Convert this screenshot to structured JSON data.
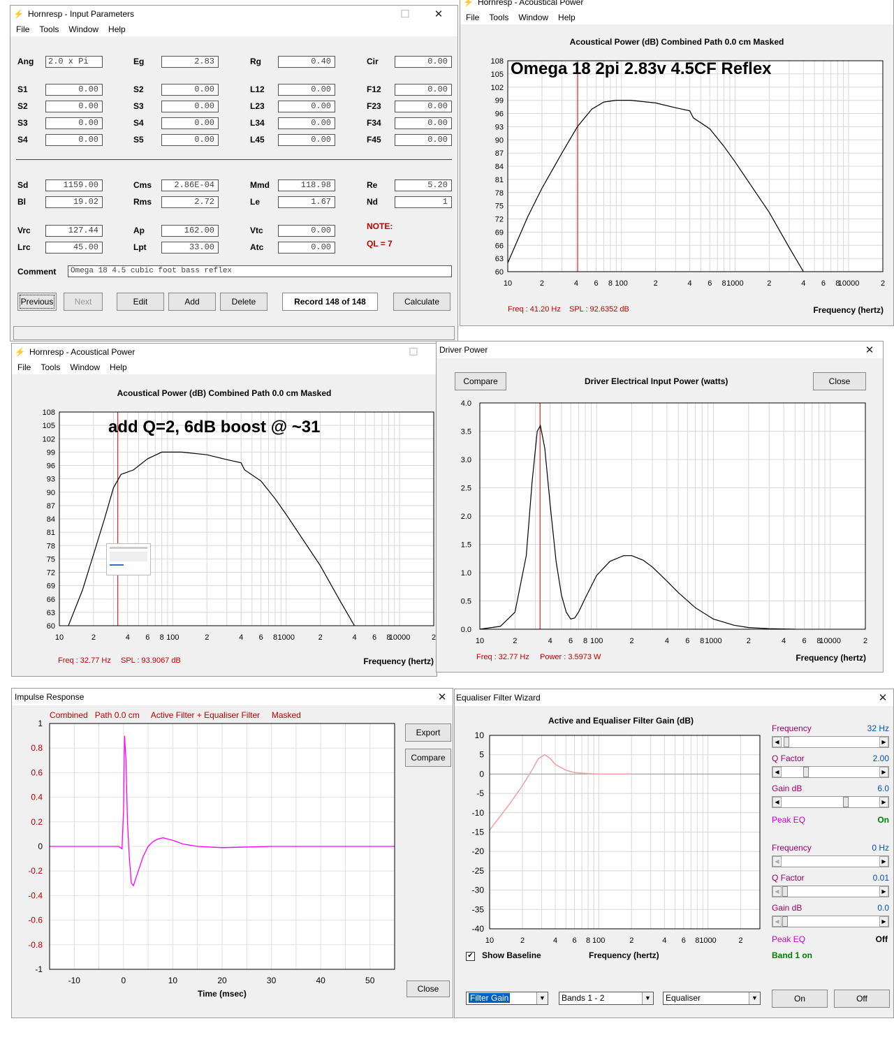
{
  "input_window": {
    "title": "Hornresp - Input Parameters",
    "menu": [
      "File",
      "Tools",
      "Window",
      "Help"
    ],
    "rows1": [
      [
        [
          "Ang",
          "2.0 x Pi"
        ],
        [
          "Eg",
          "2.83"
        ],
        [
          "Rg",
          "0.40"
        ],
        [
          "Cir",
          "0.00"
        ]
      ]
    ],
    "rows2": [
      [
        [
          "S1",
          "0.00"
        ],
        [
          "S2",
          "0.00"
        ],
        [
          "L12",
          "0.00"
        ],
        [
          "F12",
          "0.00"
        ]
      ],
      [
        [
          "S2",
          "0.00"
        ],
        [
          "S3",
          "0.00"
        ],
        [
          "L23",
          "0.00"
        ],
        [
          "F23",
          "0.00"
        ]
      ],
      [
        [
          "S3",
          "0.00"
        ],
        [
          "S4",
          "0.00"
        ],
        [
          "L34",
          "0.00"
        ],
        [
          "F34",
          "0.00"
        ]
      ],
      [
        [
          "S4",
          "0.00"
        ],
        [
          "S5",
          "0.00"
        ],
        [
          "L45",
          "0.00"
        ],
        [
          "F45",
          "0.00"
        ]
      ]
    ],
    "rows3": [
      [
        [
          "Sd",
          "1159.00"
        ],
        [
          "Cms",
          "2.86E-04"
        ],
        [
          "Mmd",
          "118.98"
        ],
        [
          "Re",
          "5.20"
        ]
      ],
      [
        [
          "Bl",
          "19.02"
        ],
        [
          "Rms",
          "2.72"
        ],
        [
          "Le",
          "1.67"
        ],
        [
          "Nd",
          "1"
        ]
      ]
    ],
    "rows4": [
      [
        [
          "Vrc",
          "127.44"
        ],
        [
          "Ap",
          "162.00"
        ],
        [
          "Vtc",
          "0.00"
        ]
      ],
      [
        [
          "Lrc",
          "45.00"
        ],
        [
          "Lpt",
          "33.00"
        ],
        [
          "Atc",
          "0.00"
        ]
      ]
    ],
    "note": "NOTE:",
    "ql": "QL = 7",
    "comment_label": "Comment",
    "comment_value": "Omega 18 4.5 cubic foot bass reflex",
    "buttons": {
      "previous": "Previous",
      "next": "Next",
      "edit": "Edit",
      "add": "Add",
      "delete": "Delete",
      "record": "Record 148 of 148",
      "calculate": "Calculate"
    }
  },
  "ap1": {
    "title": "Hornresp - Acoustical Power",
    "menu": [
      "File",
      "Tools",
      "Window",
      "Help"
    ],
    "header": "Acoustical Power (dB)   Combined   Path 0.0 cm   Masked",
    "annotation": "Omega 18 2pi 2.83v 4.5CF Reflex",
    "readout_freq": "Freq : 41.20 Hz",
    "readout_spl": "SPL : 92.6352 dB",
    "xaxis_title": "Frequency (hertz)"
  },
  "ap2": {
    "title": "Hornresp - Acoustical Power",
    "menu": [
      "File",
      "Tools",
      "Window",
      "Help"
    ],
    "header": "Acoustical Power (dB)   Combined   Path 0.0 cm   Masked",
    "annotation": "add Q=2, 6dB boost @ ~31",
    "readout_freq": "Freq : 32.77 Hz",
    "readout_spl": "SPL : 93.9067 dB",
    "xaxis_title": "Frequency (hertz)"
  },
  "driver": {
    "title": "Driver Power",
    "compare": "Compare",
    "header": "Driver Electrical Input Power (watts)",
    "close": "Close",
    "readout_freq": "Freq : 32.77 Hz",
    "readout_power": "Power : 3.5973 W",
    "xaxis_title": "Frequency (hertz)"
  },
  "impulse": {
    "title": "Impulse Response",
    "header": [
      "Combined",
      "Path 0.0 cm",
      "Active Filter + Equaliser Filter",
      "Masked"
    ],
    "export": "Export",
    "compare": "Compare",
    "close": "Close",
    "xaxis_title": "Time (msec)"
  },
  "eq": {
    "title": "Equaliser Filter Wizard",
    "header": "Active and Equaliser Filter Gain (dB)",
    "xaxis_title": "Frequency (hertz)",
    "show_baseline": "Show Baseline",
    "band1": {
      "freq_label": "Frequency",
      "freq_val": "32 Hz",
      "q_label": "Q Factor",
      "q_val": "2.00",
      "gain_label": "Gain  dB",
      "gain_val": "6.0",
      "type": "Peak EQ",
      "state": "On"
    },
    "band2": {
      "freq_label": "Frequency",
      "freq_val": "0 Hz",
      "q_label": "Q Factor",
      "q_val": "0.01",
      "gain_label": "Gain  dB",
      "gain_val": "0.0",
      "type": "Peak EQ",
      "state": "Off"
    },
    "band_status": "Band 1 on",
    "combo1": "Filter Gain",
    "combo2": "Bands 1 - 2",
    "combo3": "Equaliser",
    "on": "On",
    "off": "Off"
  },
  "colors": {
    "trace_black": "#000000",
    "impulse": "#ff00ff",
    "eq_curve": "#f0a0a0",
    "cursor": "#c00000"
  },
  "chart_data": [
    {
      "type": "line",
      "title": "Acoustical Power (dB)",
      "xlabel": "Frequency (hertz)",
      "x_scale": "log",
      "xlim": [
        10,
        20000
      ],
      "ylim": [
        60,
        108
      ],
      "yticks": [
        60,
        63,
        66,
        69,
        72,
        75,
        78,
        81,
        84,
        87,
        90,
        93,
        96,
        99,
        102,
        105,
        108
      ],
      "xticks": [
        "10",
        "2",
        "4",
        "6",
        "8",
        "100",
        "2",
        "4",
        "6",
        "8",
        "1000",
        "2",
        "4",
        "6",
        "8",
        "10000",
        "2"
      ],
      "cursor_x": 41.2,
      "series": [
        {
          "x": [
            10,
            15,
            20,
            30,
            41,
            55,
            70,
            90,
            120,
            200,
            300,
            400,
            430,
            600,
            800,
            1000,
            2000,
            3000,
            4000
          ],
          "y": [
            62,
            72.5,
            79,
            87,
            93,
            97,
            98.6,
            99,
            99,
            98.4,
            97.3,
            96.6,
            95,
            92.5,
            88.5,
            85,
            73.5,
            65.5,
            60
          ]
        }
      ]
    },
    {
      "type": "line",
      "title": "Acoustical Power (dB)",
      "xlabel": "Frequency (hertz)",
      "x_scale": "log",
      "xlim": [
        10,
        20000
      ],
      "ylim": [
        60,
        108
      ],
      "yticks": [
        60,
        63,
        66,
        69,
        72,
        75,
        78,
        81,
        84,
        87,
        90,
        93,
        96,
        99,
        102,
        105,
        108
      ],
      "xticks": [
        "10",
        "2",
        "4",
        "6",
        "8",
        "100",
        "2",
        "4",
        "6",
        "8",
        "1000",
        "2",
        "4",
        "6",
        "8",
        "10000",
        "2"
      ],
      "cursor_x": 32.77,
      "series": [
        {
          "x": [
            12,
            16,
            20,
            25,
            30,
            35,
            45,
            60,
            80,
            120,
            200,
            300,
            400,
            430,
            600,
            800,
            1000,
            2000,
            3000,
            4000
          ],
          "y": [
            60,
            68,
            76,
            84,
            91,
            94,
            95,
            97.5,
            99,
            99,
            98.4,
            97.3,
            96.6,
            95,
            92.5,
            88.5,
            85,
            73.5,
            65.5,
            60
          ]
        }
      ]
    },
    {
      "type": "line",
      "title": "Driver Electrical Input Power (watts)",
      "xlabel": "Frequency (hertz)",
      "x_scale": "log",
      "xlim": [
        10,
        20000
      ],
      "ylim": [
        0,
        4
      ],
      "yticks": [
        "0.0",
        "0.5",
        "1.0",
        "1.5",
        "2.0",
        "2.5",
        "3.0",
        "3.5",
        "4.0"
      ],
      "xticks": [
        "10",
        "2",
        "4",
        "6",
        "8",
        "100",
        "2",
        "4",
        "6",
        "8",
        "1000",
        "2",
        "4",
        "6",
        "8",
        "10000",
        "2"
      ],
      "cursor_x": 32.77,
      "series": [
        {
          "x": [
            10,
            15,
            20,
            25,
            28,
            31,
            33,
            36,
            40,
            45,
            50,
            55,
            60,
            65,
            70,
            80,
            100,
            130,
            170,
            200,
            250,
            300,
            400,
            500,
            700,
            1000,
            1500,
            2000,
            3000,
            5000
          ],
          "y": [
            0,
            0.05,
            0.3,
            1.3,
            2.6,
            3.5,
            3.6,
            3.2,
            2.2,
            1.2,
            0.6,
            0.3,
            0.18,
            0.2,
            0.3,
            0.55,
            0.95,
            1.2,
            1.3,
            1.3,
            1.22,
            1.1,
            0.85,
            0.65,
            0.38,
            0.18,
            0.07,
            0.03,
            0.01,
            0
          ]
        }
      ]
    },
    {
      "type": "line",
      "title": "Impulse Response",
      "xlabel": "Time (msec)",
      "xlim": [
        -15,
        55
      ],
      "ylim": [
        -1,
        1
      ],
      "xticks": [
        "-10",
        "0",
        "10",
        "20",
        "30",
        "40",
        "50"
      ],
      "yticks": [
        "-1",
        "-0.8",
        "-0.6",
        "-0.4",
        "-0.2",
        "0",
        "0.2",
        "0.4",
        "0.6",
        "0.8",
        "1"
      ],
      "series": [
        {
          "name": "Combined",
          "x": [
            -15,
            -1,
            -0.3,
            0,
            0.2,
            0.5,
            0.8,
            1.2,
            1.6,
            2,
            3,
            4,
            5,
            6,
            7,
            8,
            10,
            12,
            15,
            20,
            30,
            40,
            55
          ],
          "y": [
            0,
            0,
            -0.02,
            0.3,
            0.9,
            0.7,
            0.2,
            -0.1,
            -0.3,
            -0.32,
            -0.2,
            -0.08,
            0,
            0.04,
            0.06,
            0.07,
            0.05,
            0.02,
            0,
            -0.01,
            0,
            0,
            0
          ]
        }
      ]
    },
    {
      "type": "line",
      "title": "Active and Equaliser Filter Gain (dB)",
      "xlabel": "Frequency (hertz)",
      "x_scale": "log",
      "xlim": [
        10,
        20000
      ],
      "ylim": [
        -40,
        10
      ],
      "yticks": [
        "-40",
        "-35",
        "-30",
        "-25",
        "-20",
        "-15",
        "-10",
        "-5",
        "0",
        "5",
        "10"
      ],
      "xticks": [
        "10",
        "2",
        "4",
        "6",
        "8",
        "100",
        "2",
        "4",
        "6",
        "8",
        "1000",
        "2"
      ],
      "series": [
        {
          "x": [
            10,
            15,
            20,
            25,
            28,
            32,
            36,
            40,
            50,
            60,
            80,
            100,
            200
          ],
          "y": [
            -14.5,
            -8,
            -3,
            1.5,
            4,
            5,
            4,
            2.5,
            1,
            0.4,
            0.1,
            0,
            0
          ]
        }
      ]
    }
  ]
}
